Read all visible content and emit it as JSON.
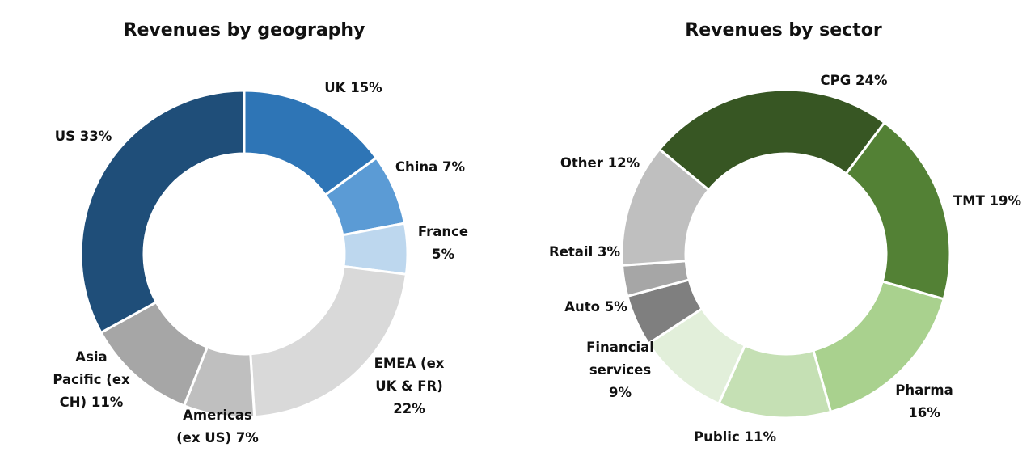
{
  "chart_data": [
    {
      "type": "pie",
      "title": "Revenues by geography",
      "series": [
        {
          "name": "UK",
          "value": 15,
          "color": "#2e75b6",
          "label": [
            "UK 15%"
          ]
        },
        {
          "name": "China",
          "value": 7,
          "color": "#5b9bd5",
          "label": [
            "China 7%"
          ]
        },
        {
          "name": "France",
          "value": 5,
          "color": "#bdd7ee",
          "label": [
            "France",
            "5%"
          ]
        },
        {
          "name": "EMEA (ex UK & FR)",
          "value": 22,
          "color": "#d9d9d9",
          "label": [
            "EMEA (ex",
            "UK & FR)",
            "22%"
          ]
        },
        {
          "name": "Americas (ex US)",
          "value": 7,
          "color": "#bfbfbf",
          "label": [
            "Americas",
            "(ex US) 7%"
          ]
        },
        {
          "name": "Asia Pacific (ex CH)",
          "value": 11,
          "color": "#a6a6a6",
          "label": [
            "Asia",
            "Pacific (ex",
            "CH) 11%"
          ]
        },
        {
          "name": "US",
          "value": 33,
          "color": "#1f4e79",
          "label": [
            "US 33%"
          ]
        }
      ]
    },
    {
      "type": "pie",
      "title": "Revenues by sector",
      "series": [
        {
          "name": "CPG",
          "value": 24,
          "color": "#375623",
          "label": [
            "CPG 24%"
          ]
        },
        {
          "name": "TMT",
          "value": 19,
          "color": "#538135",
          "label": [
            "TMT 19%"
          ]
        },
        {
          "name": "Pharma",
          "value": 16,
          "color": "#a9d18e",
          "label": [
            "Pharma",
            "16%"
          ]
        },
        {
          "name": "Public",
          "value": 11,
          "color": "#c5e0b4",
          "label": [
            "Public 11%"
          ]
        },
        {
          "name": "Financial services",
          "value": 9,
          "color": "#e2efda",
          "label": [
            "Financial",
            "services",
            "9%"
          ]
        },
        {
          "name": "Auto",
          "value": 5,
          "color": "#7f7f7f",
          "label": [
            "Auto 5%"
          ]
        },
        {
          "name": "Retail",
          "value": 3,
          "color": "#a6a6a6",
          "label": [
            "Retail 3%"
          ]
        },
        {
          "name": "Other",
          "value": 12,
          "color": "#bfbfbf",
          "label": [
            "Other 12%"
          ]
        }
      ]
    }
  ]
}
